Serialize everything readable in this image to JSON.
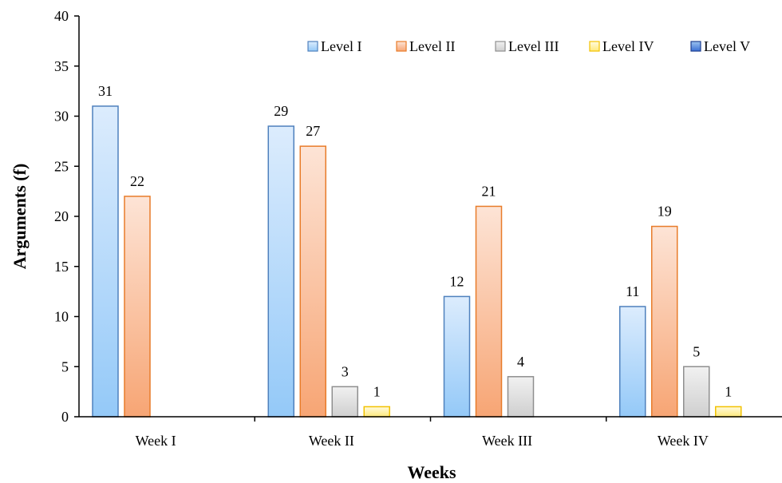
{
  "chart_data": {
    "type": "bar",
    "title": "",
    "xlabel": "Weeks",
    "ylabel": "Arguments (f)",
    "ylim": [
      0,
      40
    ],
    "yticks": [
      0,
      5,
      10,
      15,
      20,
      25,
      30,
      35,
      40
    ],
    "grid": false,
    "legend_position": "top-right",
    "categories": [
      "Week I",
      "Week II",
      "Week III",
      "Week IV"
    ],
    "series": [
      {
        "name": "Level I",
        "values": [
          31,
          29,
          12,
          11
        ],
        "color_top": "#dcecfd",
        "color_bottom": "#94c9f8",
        "stroke": "#4f81bd"
      },
      {
        "name": "Level II",
        "values": [
          22,
          27,
          21,
          19
        ],
        "color_top": "#fde4d6",
        "color_bottom": "#f7a574",
        "stroke": "#e87c2a"
      },
      {
        "name": "Level III",
        "values": [
          null,
          3,
          4,
          5
        ],
        "color_top": "#f1f1f1",
        "color_bottom": "#cfcfcf",
        "stroke": "#8f8f8f"
      },
      {
        "name": "Level IV",
        "values": [
          null,
          1,
          null,
          1
        ],
        "color_top": "#fffbe0",
        "color_bottom": "#ffe97a",
        "stroke": "#f2c200"
      },
      {
        "name": "Level V",
        "values": [
          null,
          null,
          null,
          null
        ],
        "color_top": "#9cc3f0",
        "color_bottom": "#3b6fd4",
        "stroke": "#1f3f8f"
      }
    ]
  }
}
